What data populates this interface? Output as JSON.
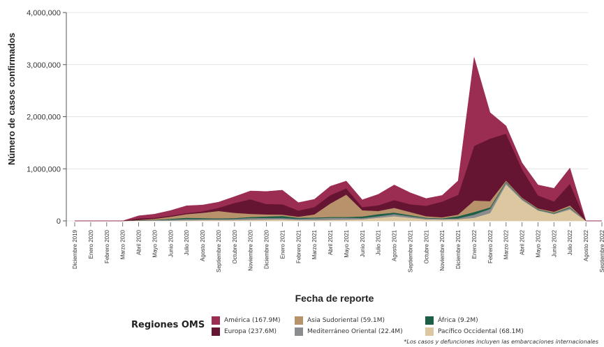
{
  "chart_data": {
    "type": "area",
    "stacked": true,
    "xlabel": "Fecha de reporte",
    "ylabel": "Número de casos confirmados",
    "ylim": [
      0,
      4000000
    ],
    "yticks": [
      0,
      1000000,
      2000000,
      3000000,
      4000000
    ],
    "ytick_labels": [
      "0",
      "1,000,000",
      "2,000,000",
      "3,000,000",
      "4,000,000"
    ],
    "x": [
      "Diciembre 2019",
      "Enero 2020",
      "Febrero 2020",
      "Marzo 2020",
      "Abril 2020",
      "Mayo 2020",
      "Junio 2020",
      "Julio 2020",
      "Agosto 2020",
      "Septiembre 2020",
      "Octubre 2020",
      "Noviembre 2020",
      "Diciembre 2020",
      "Enero 2021",
      "Febrero 2021",
      "Marzo 2021",
      "Abril 2021",
      "Mayo 2021",
      "Junio 2021",
      "Julio 2021",
      "Agosto 2021",
      "Septiembre 2021",
      "Octubre 2021",
      "Noviembre 2021",
      "Diciembre 2021",
      "Enero 2022",
      "Febrero 2022",
      "Marzo 2022",
      "Abril 2022",
      "Mayo 2022",
      "Junio 2022",
      "Julio 2022",
      "Agosto 2022",
      "Septiembre 2022"
    ],
    "series": [
      {
        "name": "Pacífico Occidental",
        "total": "(68.1M)",
        "color": "#dcc7a0",
        "values": [
          0,
          0,
          0,
          0,
          5000,
          5000,
          5000,
          10000,
          15000,
          15000,
          15000,
          20000,
          25000,
          30000,
          15000,
          15000,
          20000,
          25000,
          30000,
          60000,
          90000,
          60000,
          30000,
          25000,
          30000,
          60000,
          150000,
          700000,
          400000,
          200000,
          130000,
          220000,
          0,
          0
        ]
      },
      {
        "name": "Mediterráneo Oriental",
        "total": "(22.4M)",
        "color": "#8a8c8e",
        "values": [
          0,
          0,
          0,
          0,
          5000,
          10000,
          20000,
          25000,
          20000,
          20000,
          25000,
          35000,
          30000,
          25000,
          25000,
          35000,
          40000,
          35000,
          25000,
          30000,
          40000,
          30000,
          20000,
          15000,
          20000,
          60000,
          80000,
          40000,
          20000,
          15000,
          15000,
          30000,
          0,
          0
        ]
      },
      {
        "name": "África",
        "total": "(9.2M)",
        "color": "#1d5e46",
        "values": [
          0,
          0,
          0,
          0,
          3000,
          5000,
          15000,
          25000,
          20000,
          15000,
          15000,
          20000,
          30000,
          40000,
          20000,
          15000,
          15000,
          15000,
          30000,
          40000,
          30000,
          20000,
          10000,
          10000,
          40000,
          50000,
          30000,
          15000,
          10000,
          10000,
          10000,
          15000,
          0,
          0
        ]
      },
      {
        "name": "Asia Sudoriental",
        "total": "(59.1M)",
        "color": "#b8926a",
        "values": [
          0,
          0,
          0,
          0,
          5000,
          20000,
          40000,
          70000,
          100000,
          140000,
          100000,
          60000,
          40000,
          25000,
          20000,
          60000,
          260000,
          430000,
          120000,
          60000,
          90000,
          60000,
          30000,
          20000,
          30000,
          220000,
          120000,
          20000,
          15000,
          15000,
          20000,
          30000,
          0,
          0
        ]
      },
      {
        "name": "Europa",
        "total": "(237.6M)",
        "color": "#651532",
        "values": [
          0,
          0,
          0,
          0,
          30000,
          20000,
          20000,
          20000,
          30000,
          60000,
          190000,
          280000,
          200000,
          200000,
          120000,
          140000,
          160000,
          120000,
          60000,
          110000,
          150000,
          150000,
          200000,
          300000,
          380000,
          1050000,
          1200000,
          900000,
          550000,
          250000,
          200000,
          420000,
          0,
          0
        ]
      },
      {
        "name": "América",
        "total": "(167.9M)",
        "color": "#9b2c52",
        "values": [
          0,
          0,
          0,
          0,
          50000,
          70000,
          100000,
          140000,
          120000,
          110000,
          120000,
          160000,
          240000,
          270000,
          150000,
          150000,
          170000,
          140000,
          140000,
          210000,
          290000,
          220000,
          140000,
          120000,
          270000,
          1700000,
          500000,
          150000,
          120000,
          200000,
          250000,
          300000,
          0,
          0
        ]
      }
    ],
    "legend_title": "Regiones OMS",
    "legend_placement": "bottom",
    "grid": true,
    "footnote": "*Los casos y defunciones incluyen las embarcaciones internacionales"
  }
}
